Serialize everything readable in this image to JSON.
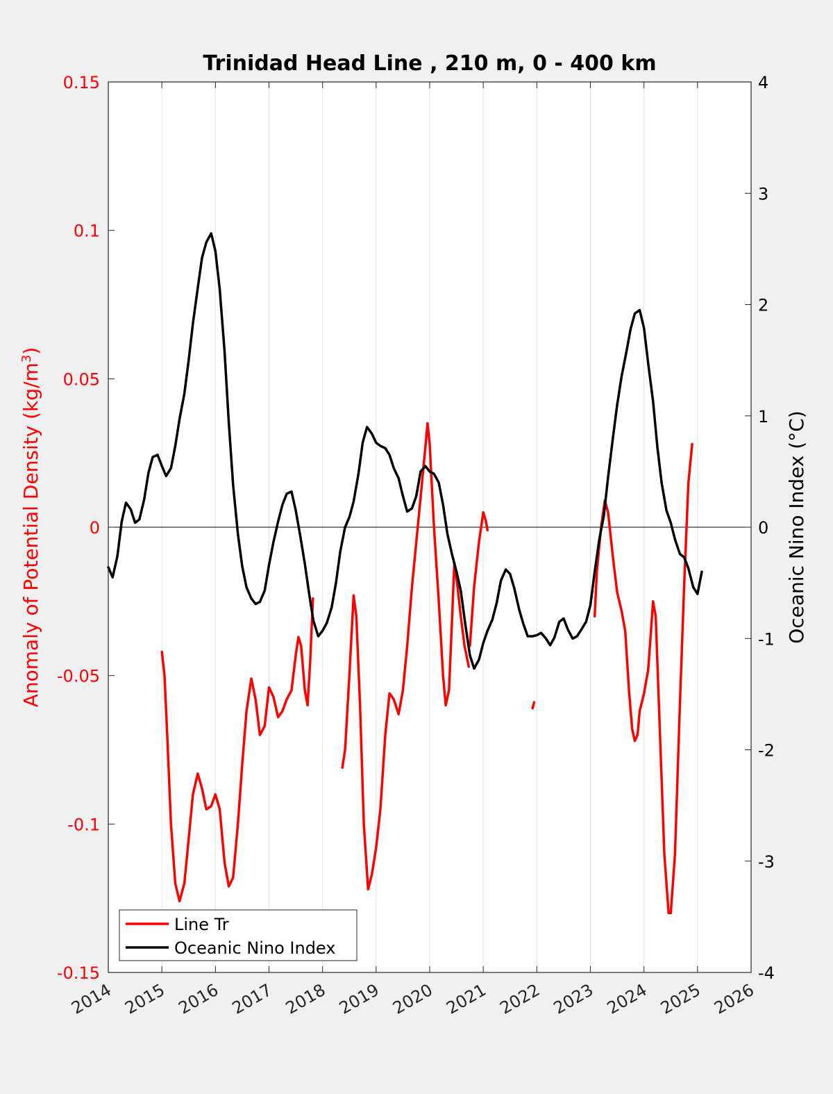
{
  "chart_data": {
    "type": "line",
    "title": "Trinidad Head Line , 210 m, 0 - 400 km",
    "xlim": [
      2014,
      2026
    ],
    "x_ticks": [
      "2014",
      "2015",
      "2016",
      "2017",
      "2018",
      "2019",
      "2020",
      "2021",
      "2022",
      "2023",
      "2024",
      "2025",
      "2026"
    ],
    "left_axis": {
      "label": "Anomaly of Potential Density (kg/m",
      "label_superscript": "3",
      "label_close": ")",
      "color": "#ff0000",
      "ylim": [
        -0.15,
        0.15
      ],
      "ticks": [
        "-0.15",
        "-0.1",
        "-0.05",
        "0",
        "0.05",
        "0.1",
        "0.15"
      ]
    },
    "right_axis": {
      "label": "Oceanic Nino Index (°C)",
      "color": "#000000",
      "ylim": [
        -4,
        4
      ],
      "ticks": [
        "-4",
        "-3",
        "-2",
        "-1",
        "0",
        "1",
        "2",
        "3",
        "4"
      ]
    },
    "zero_line": true,
    "grid": "vertical",
    "legend_position": "bottom-left",
    "series": [
      {
        "name": "Line Tr",
        "color": "#ff0000",
        "axis": "left",
        "segments": [
          [
            [
              2015.0,
              -0.042
            ],
            [
              2015.05,
              -0.05
            ],
            [
              2015.1,
              -0.07
            ],
            [
              2015.17,
              -0.1
            ],
            [
              2015.25,
              -0.12
            ],
            [
              2015.33,
              -0.126
            ],
            [
              2015.42,
              -0.12
            ],
            [
              2015.5,
              -0.105
            ],
            [
              2015.58,
              -0.09
            ],
            [
              2015.67,
              -0.083
            ],
            [
              2015.75,
              -0.088
            ],
            [
              2015.83,
              -0.095
            ],
            [
              2015.92,
              -0.094
            ],
            [
              2016.0,
              -0.09
            ],
            [
              2016.08,
              -0.095
            ],
            [
              2016.17,
              -0.113
            ],
            [
              2016.25,
              -0.121
            ],
            [
              2016.33,
              -0.118
            ],
            [
              2016.42,
              -0.1
            ],
            [
              2016.5,
              -0.08
            ],
            [
              2016.58,
              -0.062
            ],
            [
              2016.67,
              -0.051
            ],
            [
              2016.75,
              -0.058
            ],
            [
              2016.83,
              -0.07
            ],
            [
              2016.92,
              -0.067
            ],
            [
              2017.0,
              -0.054
            ],
            [
              2017.08,
              -0.057
            ],
            [
              2017.17,
              -0.064
            ],
            [
              2017.25,
              -0.062
            ],
            [
              2017.33,
              -0.058
            ],
            [
              2017.42,
              -0.055
            ],
            [
              2017.5,
              -0.043
            ],
            [
              2017.55,
              -0.037
            ],
            [
              2017.6,
              -0.04
            ],
            [
              2017.67,
              -0.055
            ],
            [
              2017.72,
              -0.06
            ],
            [
              2017.77,
              -0.045
            ],
            [
              2017.82,
              -0.024
            ]
          ],
          [
            [
              2018.37,
              -0.081
            ],
            [
              2018.42,
              -0.075
            ],
            [
              2018.5,
              -0.05
            ],
            [
              2018.58,
              -0.023
            ],
            [
              2018.63,
              -0.03
            ],
            [
              2018.7,
              -0.06
            ],
            [
              2018.77,
              -0.1
            ],
            [
              2018.85,
              -0.122
            ],
            [
              2018.92,
              -0.117
            ],
            [
              2019.0,
              -0.108
            ],
            [
              2019.08,
              -0.095
            ],
            [
              2019.17,
              -0.07
            ],
            [
              2019.25,
              -0.056
            ],
            [
              2019.33,
              -0.058
            ],
            [
              2019.42,
              -0.063
            ],
            [
              2019.5,
              -0.055
            ],
            [
              2019.58,
              -0.04
            ],
            [
              2019.67,
              -0.02
            ],
            [
              2019.75,
              -0.005
            ],
            [
              2019.83,
              0.01
            ],
            [
              2019.92,
              0.027
            ],
            [
              2019.96,
              0.035
            ],
            [
              2020.0,
              0.028
            ],
            [
              2020.08,
              0.0
            ],
            [
              2020.17,
              -0.025
            ],
            [
              2020.25,
              -0.05
            ],
            [
              2020.3,
              -0.06
            ],
            [
              2020.36,
              -0.055
            ],
            [
              2020.42,
              -0.03
            ],
            [
              2020.46,
              -0.012
            ],
            [
              2020.52,
              -0.02
            ],
            [
              2020.58,
              -0.03
            ],
            [
              2020.65,
              -0.04
            ],
            [
              2020.73,
              -0.047
            ]
          ],
          [
            [
              2020.75,
              -0.04
            ],
            [
              2020.83,
              -0.02
            ],
            [
              2020.92,
              -0.005
            ],
            [
              2021.0,
              0.005
            ],
            [
              2021.05,
              0.002
            ],
            [
              2021.08,
              -0.001
            ]
          ],
          [
            [
              2021.92,
              -0.061
            ],
            [
              2021.95,
              -0.059
            ]
          ],
          [
            [
              2023.08,
              -0.03
            ],
            [
              2023.12,
              -0.015
            ],
            [
              2023.2,
              0.0
            ],
            [
              2023.27,
              0.009
            ],
            [
              2023.33,
              0.005
            ],
            [
              2023.42,
              -0.01
            ],
            [
              2023.5,
              -0.022
            ],
            [
              2023.58,
              -0.028
            ],
            [
              2023.65,
              -0.035
            ],
            [
              2023.72,
              -0.055
            ],
            [
              2023.78,
              -0.068
            ],
            [
              2023.83,
              -0.072
            ],
            [
              2023.88,
              -0.07
            ],
            [
              2023.92,
              -0.062
            ],
            [
              2024.0,
              -0.056
            ],
            [
              2024.08,
              -0.048
            ],
            [
              2024.17,
              -0.025
            ],
            [
              2024.22,
              -0.03
            ],
            [
              2024.3,
              -0.07
            ],
            [
              2024.38,
              -0.11
            ],
            [
              2024.46,
              -0.13
            ],
            [
              2024.5,
              -0.13
            ],
            [
              2024.58,
              -0.11
            ],
            [
              2024.67,
              -0.06
            ],
            [
              2024.75,
              -0.02
            ],
            [
              2024.83,
              0.015
            ],
            [
              2024.9,
              0.028
            ]
          ]
        ]
      },
      {
        "name": "Oceanic Nino Index",
        "color": "#000000",
        "axis": "right",
        "segments": [
          [
            [
              2014.0,
              -0.36
            ],
            [
              2014.08,
              -0.45
            ],
            [
              2014.17,
              -0.26
            ],
            [
              2014.25,
              0.05
            ],
            [
              2014.33,
              0.22
            ],
            [
              2014.42,
              0.16
            ],
            [
              2014.5,
              0.04
            ],
            [
              2014.58,
              0.07
            ],
            [
              2014.67,
              0.25
            ],
            [
              2014.75,
              0.49
            ],
            [
              2014.83,
              0.63
            ],
            [
              2014.92,
              0.65
            ],
            [
              2015.0,
              0.55
            ],
            [
              2015.08,
              0.46
            ],
            [
              2015.17,
              0.53
            ],
            [
              2015.25,
              0.73
            ],
            [
              2015.33,
              0.97
            ],
            [
              2015.42,
              1.2
            ],
            [
              2015.5,
              1.5
            ],
            [
              2015.58,
              1.83
            ],
            [
              2015.67,
              2.15
            ],
            [
              2015.75,
              2.42
            ],
            [
              2015.83,
              2.56
            ],
            [
              2015.92,
              2.64
            ],
            [
              2016.0,
              2.48
            ],
            [
              2016.08,
              2.14
            ],
            [
              2016.17,
              1.58
            ],
            [
              2016.25,
              0.94
            ],
            [
              2016.33,
              0.38
            ],
            [
              2016.42,
              -0.06
            ],
            [
              2016.5,
              -0.35
            ],
            [
              2016.58,
              -0.54
            ],
            [
              2016.67,
              -0.64
            ],
            [
              2016.75,
              -0.69
            ],
            [
              2016.83,
              -0.67
            ],
            [
              2016.92,
              -0.57
            ],
            [
              2017.0,
              -0.34
            ],
            [
              2017.08,
              -0.14
            ],
            [
              2017.17,
              0.05
            ],
            [
              2017.25,
              0.2
            ],
            [
              2017.33,
              0.3
            ],
            [
              2017.42,
              0.32
            ],
            [
              2017.5,
              0.15
            ],
            [
              2017.58,
              -0.07
            ],
            [
              2017.67,
              -0.33
            ],
            [
              2017.75,
              -0.6
            ],
            [
              2017.83,
              -0.84
            ],
            [
              2017.92,
              -0.98
            ],
            [
              2018.0,
              -0.93
            ],
            [
              2018.08,
              -0.86
            ],
            [
              2018.17,
              -0.72
            ],
            [
              2018.25,
              -0.5
            ],
            [
              2018.33,
              -0.22
            ],
            [
              2018.42,
              0.0
            ],
            [
              2018.5,
              0.09
            ],
            [
              2018.58,
              0.23
            ],
            [
              2018.67,
              0.48
            ],
            [
              2018.75,
              0.76
            ],
            [
              2018.83,
              0.9
            ],
            [
              2018.92,
              0.84
            ],
            [
              2019.0,
              0.76
            ],
            [
              2019.08,
              0.73
            ],
            [
              2019.17,
              0.71
            ],
            [
              2019.25,
              0.65
            ],
            [
              2019.33,
              0.53
            ],
            [
              2019.42,
              0.44
            ],
            [
              2019.5,
              0.28
            ],
            [
              2019.58,
              0.14
            ],
            [
              2019.67,
              0.17
            ],
            [
              2019.75,
              0.28
            ],
            [
              2019.83,
              0.5
            ],
            [
              2019.92,
              0.55
            ],
            [
              2020.0,
              0.5
            ],
            [
              2020.08,
              0.48
            ],
            [
              2020.17,
              0.4
            ],
            [
              2020.25,
              0.2
            ],
            [
              2020.33,
              -0.06
            ],
            [
              2020.42,
              -0.25
            ],
            [
              2020.5,
              -0.4
            ],
            [
              2020.58,
              -0.57
            ],
            [
              2020.67,
              -0.89
            ],
            [
              2020.75,
              -1.15
            ],
            [
              2020.83,
              -1.27
            ],
            [
              2020.92,
              -1.19
            ],
            [
              2021.0,
              -1.04
            ],
            [
              2021.08,
              -0.93
            ],
            [
              2021.17,
              -0.83
            ],
            [
              2021.25,
              -0.68
            ],
            [
              2021.33,
              -0.48
            ],
            [
              2021.42,
              -0.38
            ],
            [
              2021.5,
              -0.42
            ],
            [
              2021.58,
              -0.55
            ],
            [
              2021.67,
              -0.74
            ],
            [
              2021.75,
              -0.87
            ],
            [
              2021.83,
              -0.98
            ],
            [
              2021.92,
              -0.98
            ],
            [
              2022.0,
              -0.97
            ],
            [
              2022.08,
              -0.95
            ],
            [
              2022.17,
              -1.0
            ],
            [
              2022.25,
              -1.06
            ],
            [
              2022.33,
              -0.99
            ],
            [
              2022.42,
              -0.85
            ],
            [
              2022.5,
              -0.82
            ],
            [
              2022.58,
              -0.92
            ],
            [
              2022.67,
              -1.0
            ],
            [
              2022.75,
              -0.98
            ],
            [
              2022.83,
              -0.92
            ],
            [
              2022.92,
              -0.85
            ],
            [
              2023.0,
              -0.7
            ],
            [
              2023.08,
              -0.4
            ],
            [
              2023.17,
              -0.1
            ],
            [
              2023.25,
              0.1
            ],
            [
              2023.33,
              0.45
            ],
            [
              2023.42,
              0.8
            ],
            [
              2023.5,
              1.1
            ],
            [
              2023.58,
              1.35
            ],
            [
              2023.67,
              1.57
            ],
            [
              2023.75,
              1.78
            ],
            [
              2023.83,
              1.92
            ],
            [
              2023.92,
              1.95
            ],
            [
              2024.0,
              1.79
            ],
            [
              2024.08,
              1.47
            ],
            [
              2024.17,
              1.13
            ],
            [
              2024.25,
              0.72
            ],
            [
              2024.33,
              0.4
            ],
            [
              2024.42,
              0.15
            ],
            [
              2024.5,
              0.04
            ],
            [
              2024.58,
              -0.11
            ],
            [
              2024.67,
              -0.24
            ],
            [
              2024.75,
              -0.27
            ],
            [
              2024.83,
              -0.37
            ],
            [
              2024.92,
              -0.54
            ],
            [
              2025.0,
              -0.6
            ],
            [
              2025.08,
              -0.4
            ]
          ]
        ]
      }
    ]
  }
}
